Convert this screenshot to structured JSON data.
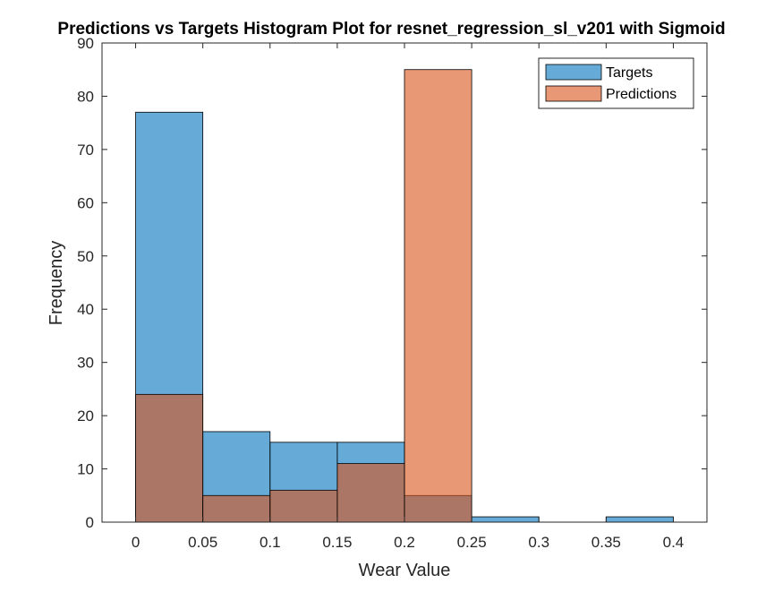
{
  "chart_data": {
    "type": "bar",
    "title": "Predictions vs Targets Histogram Plot for resnet_regression_sl_v201 with Sigmoid",
    "xlabel": "Wear Value",
    "ylabel": "Frequency",
    "xlim": [
      -0.025,
      0.425
    ],
    "ylim": [
      0,
      90
    ],
    "xticks": [
      "0",
      "0.05",
      "0.1",
      "0.15",
      "0.2",
      "0.25",
      "0.3",
      "0.35",
      "0.4"
    ],
    "yticks": [
      "0",
      "10",
      "20",
      "30",
      "40",
      "50",
      "60",
      "70",
      "80",
      "90"
    ],
    "bin_edges": [
      0,
      0.05,
      0.1,
      0.15,
      0.2,
      0.25,
      0.3,
      0.35,
      0.4
    ],
    "series": [
      {
        "name": "Targets",
        "color": "#0072BD",
        "alpha": 0.6,
        "values": [
          77,
          17,
          15,
          15,
          5,
          1,
          0,
          1
        ]
      },
      {
        "name": "Predictions",
        "color": "#D95319",
        "alpha": 0.6,
        "values": [
          24,
          5,
          6,
          11,
          85,
          0,
          0,
          0
        ]
      }
    ],
    "legend": "top-right",
    "grid": false
  }
}
